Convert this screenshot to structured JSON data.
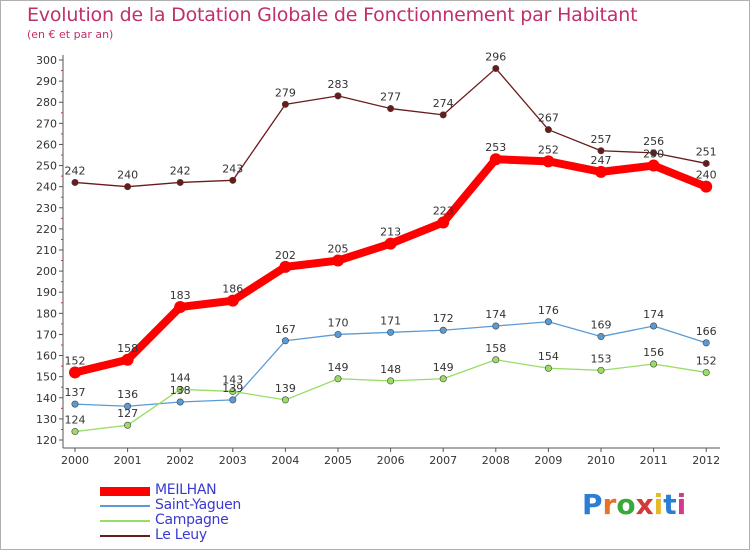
{
  "title": "Evolution de la Dotation Globale de Fonctionnement par Habitant",
  "subtitle": "(en € et par an)",
  "logo_text": "Proxiti",
  "chart_data": {
    "type": "line",
    "x": [
      "2000",
      "2001",
      "2002",
      "2003",
      "2004",
      "2005",
      "2006",
      "2007",
      "2008",
      "2009",
      "2010",
      "2011",
      "2012"
    ],
    "ylim": [
      120,
      300
    ],
    "yticks": [
      120,
      130,
      140,
      150,
      160,
      170,
      180,
      190,
      200,
      210,
      220,
      230,
      240,
      250,
      260,
      270,
      280,
      290,
      300
    ],
    "grid": false,
    "legend_position": "bottom-left",
    "series": [
      {
        "name": "MEILHAN",
        "color": "#ff0000",
        "values": [
          152,
          158,
          183,
          186,
          202,
          205,
          213,
          223,
          253,
          252,
          247,
          250,
          240
        ]
      },
      {
        "name": "Saint-Yaguen",
        "color": "#5b9bd5",
        "values": [
          137,
          136,
          138,
          139,
          167,
          170,
          171,
          172,
          174,
          176,
          169,
          174,
          166
        ]
      },
      {
        "name": "Campagne",
        "color": "#99dd66",
        "values": [
          124,
          127,
          144,
          143,
          139,
          149,
          148,
          149,
          158,
          154,
          153,
          156,
          152
        ]
      },
      {
        "name": "Le Leuy",
        "color": "#6b1a1a",
        "values": [
          242,
          240,
          242,
          243,
          279,
          283,
          277,
          274,
          296,
          267,
          257,
          256,
          251
        ]
      }
    ]
  }
}
